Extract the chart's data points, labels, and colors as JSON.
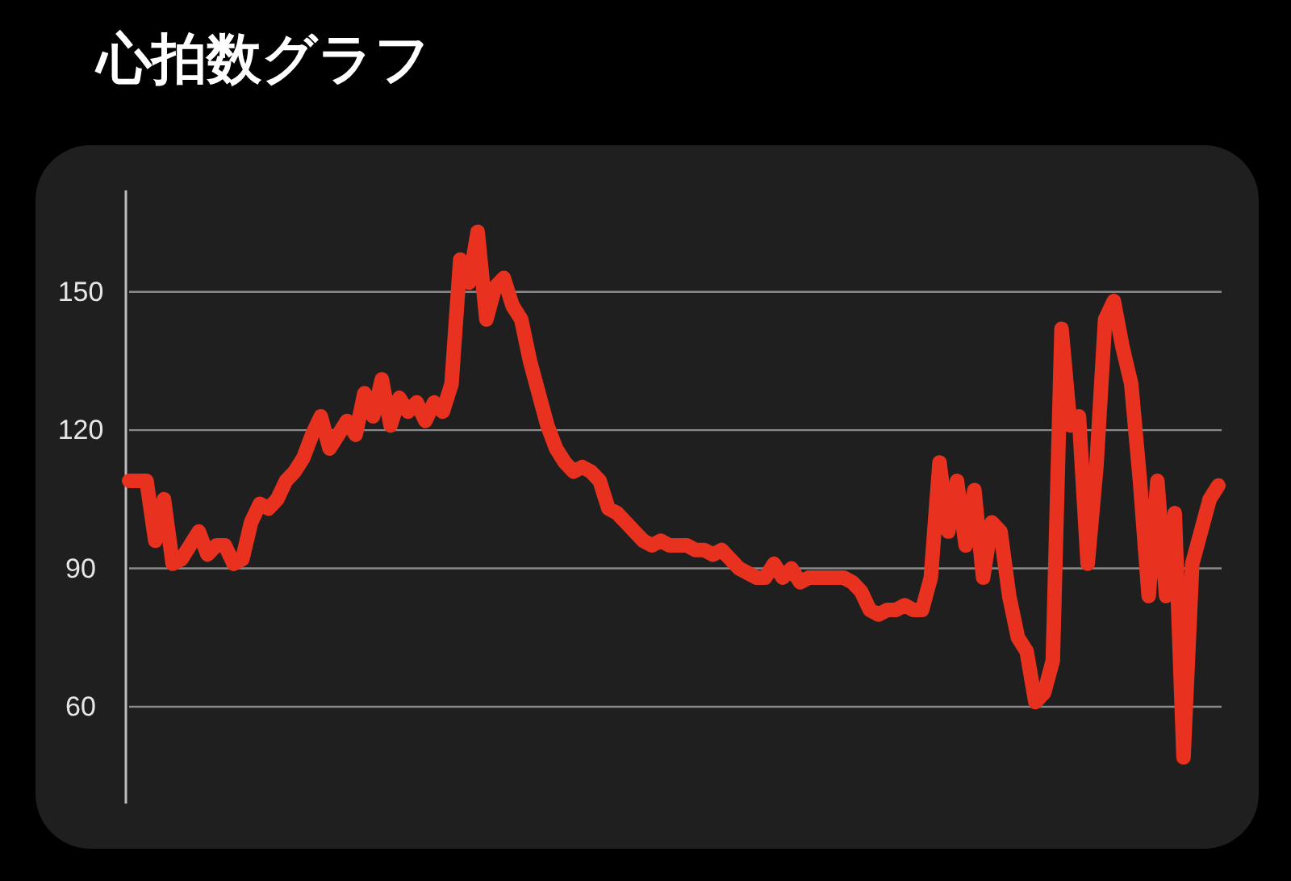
{
  "chart_data": {
    "type": "line",
    "title": "心拍数グラフ",
    "categories": [
      null,
      null,
      null,
      null,
      null,
      null,
      null,
      null,
      null,
      null,
      null,
      null,
      null,
      null,
      null,
      null,
      null,
      null,
      null,
      null,
      null,
      null,
      null,
      null,
      null,
      null,
      null,
      null,
      null,
      null,
      null,
      null,
      null,
      null,
      null,
      null,
      null,
      null,
      null,
      null,
      null,
      null,
      null,
      null,
      null,
      null,
      null,
      null,
      null,
      null,
      null,
      null,
      null,
      null,
      null,
      null,
      null,
      null,
      null,
      null,
      null,
      null,
      null,
      null,
      null,
      null,
      null,
      null,
      null,
      null,
      null,
      null,
      null,
      null,
      null,
      null,
      null,
      null,
      null,
      null,
      null,
      null,
      null,
      null,
      null,
      null,
      null,
      null,
      null,
      null,
      null,
      null,
      null,
      null,
      null,
      null,
      null,
      null,
      null,
      null,
      null,
      null,
      null,
      null,
      null,
      null,
      null,
      null,
      null,
      null,
      null,
      null,
      null,
      null,
      null,
      null,
      null,
      null,
      null,
      null,
      null,
      null,
      null,
      null,
      null,
      null
    ],
    "values": [
      109,
      109,
      109,
      96,
      105,
      91,
      92,
      95,
      98,
      93,
      95,
      95,
      91,
      92,
      100,
      104,
      103,
      105,
      109,
      111,
      114,
      119,
      123,
      116,
      119,
      122,
      119,
      128,
      123,
      131,
      121,
      127,
      124,
      126,
      122,
      126,
      124,
      130,
      157,
      152,
      163,
      144,
      151,
      153,
      147,
      144,
      135,
      128,
      121,
      116,
      113,
      111,
      112,
      111,
      109,
      103,
      102,
      100,
      98,
      96,
      95,
      96,
      95,
      95,
      95,
      94,
      94,
      93,
      94,
      92,
      90,
      89,
      88,
      88,
      91,
      88,
      90,
      87,
      88,
      88,
      88,
      88,
      88,
      87,
      85,
      81,
      80,
      81,
      81,
      82,
      81,
      81,
      88,
      113,
      98,
      109,
      95,
      107,
      88,
      100,
      98,
      84,
      75,
      72,
      61,
      63,
      70,
      142,
      121,
      123,
      91,
      112,
      144,
      148,
      138,
      130,
      109,
      84,
      109,
      84,
      102,
      49,
      91,
      98,
      105,
      108
    ],
    "color": "#e8321f",
    "ylim": [
      39,
      172
    ],
    "yticks": [
      60,
      90,
      120,
      150
    ],
    "grid": "y",
    "marker": "none",
    "line_style": "solid"
  }
}
